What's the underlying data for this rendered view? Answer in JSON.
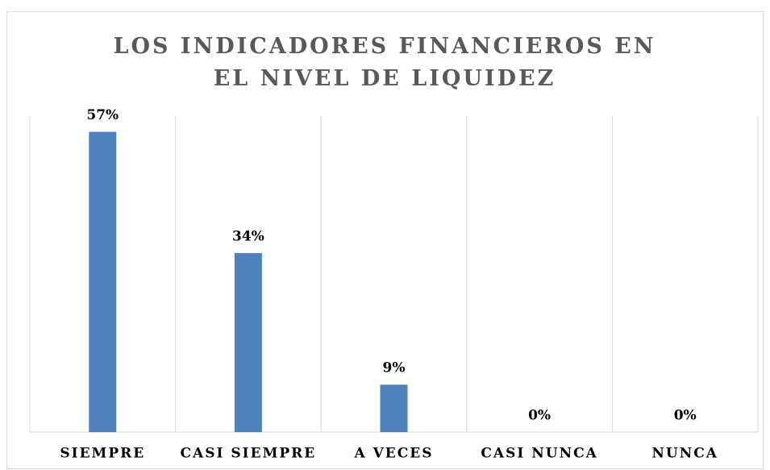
{
  "chart_data": {
    "type": "bar",
    "title": "LOS INDICADORES FINANCIEROS EN EL NIVEL DE LIQUIDEZ",
    "categories": [
      "SIEMPRE",
      "CASI SIEMPRE",
      "A VECES",
      "CASI NUNCA",
      "NUNCA"
    ],
    "values": [
      57,
      34,
      9,
      0,
      0
    ],
    "value_labels": [
      "57%",
      "34%",
      "9%",
      "0%",
      "0%"
    ],
    "color": "#4f81bd",
    "ylim": [
      0,
      60
    ]
  }
}
